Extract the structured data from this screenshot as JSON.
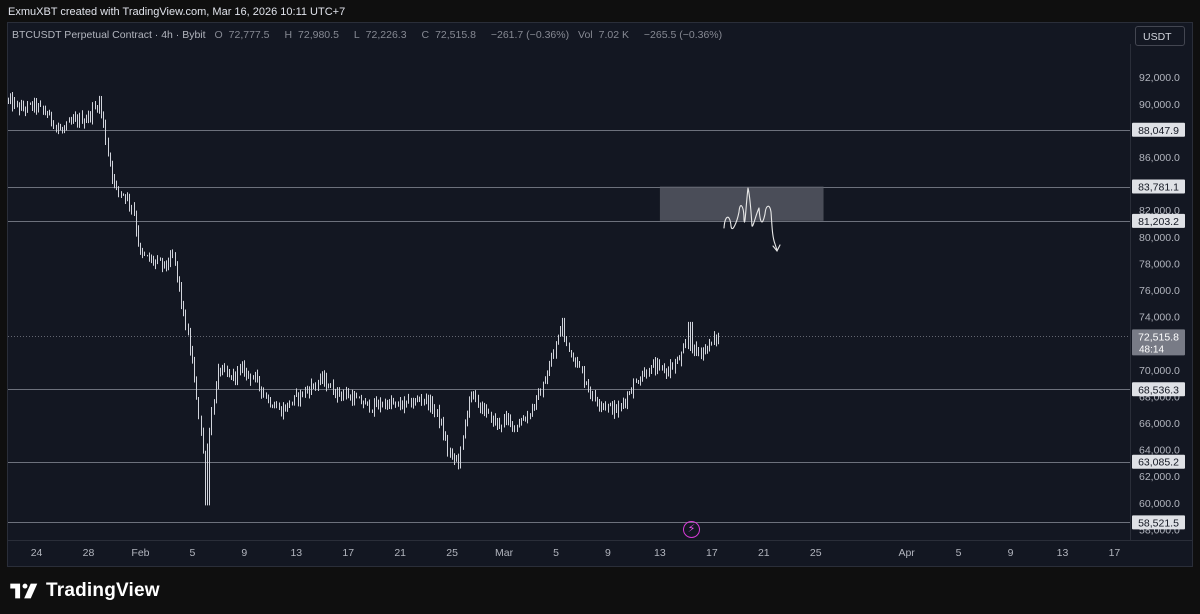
{
  "header": {
    "credit": "ExmuXBT created with TradingView.com, Mar 16, 2026 10:11 UTC+7"
  },
  "legend": {
    "symbol": "BTCUSDT Perpetual Contract · 4h · Bybit",
    "o_label": "O",
    "o_value": "72,777.5",
    "h_label": "H",
    "h_value": "72,980.5",
    "l_label": "L",
    "l_value": "72,226.3",
    "c_label": "C",
    "c_value": "72,515.8",
    "change": "−261.7 (−0.36%)",
    "vol_label": "Vol",
    "vol_value": "7.02 K",
    "vol_change": "−265.5 (−0.36%)"
  },
  "currency_button": "USDT",
  "brand": {
    "name": "TradingView"
  },
  "colors": {
    "background": "#131722",
    "candle": "#d1d4dc",
    "level_line": "#787b86",
    "zone_fill": "#5d606b",
    "price_tag": "#2a2e39",
    "current_tag": "#787b86",
    "lightning": "#e54fe5"
  },
  "icons": {
    "lightning": "lightning-icon",
    "logo": "tradingview-logo-icon"
  },
  "chart_data": {
    "type": "candlestick",
    "symbol": "BTCUSDT",
    "interval": "4h",
    "ylim": [
      57200,
      94500
    ],
    "y_ticks": [
      {
        "value": 92000,
        "label": "92,000.0"
      },
      {
        "value": 90000,
        "label": "90,000.0"
      },
      {
        "value": 86000,
        "label": "86,000.0"
      },
      {
        "value": 82000,
        "label": "82,000.0"
      },
      {
        "value": 80000,
        "label": "80,000.0"
      },
      {
        "value": 78000,
        "label": "78,000.0"
      },
      {
        "value": 76000,
        "label": "76,000.0"
      },
      {
        "value": 74000,
        "label": "74,000.0"
      },
      {
        "value": 70000,
        "label": "70,000.0"
      },
      {
        "value": 68000,
        "label": "68,000.0"
      },
      {
        "value": 66000,
        "label": "66,000.0"
      },
      {
        "value": 64000,
        "label": "64,000.0"
      },
      {
        "value": 62000,
        "label": "62,000.0"
      },
      {
        "value": 60000,
        "label": "60,000.0"
      },
      {
        "value": 58000,
        "label": "58,000.0"
      }
    ],
    "x_ticks": [
      {
        "day": 24,
        "label": "24"
      },
      {
        "day": 28,
        "label": "28"
      },
      {
        "day": 32,
        "label": "Feb"
      },
      {
        "day": 36,
        "label": "5"
      },
      {
        "day": 40,
        "label": "9"
      },
      {
        "day": 44,
        "label": "13"
      },
      {
        "day": 48,
        "label": "17"
      },
      {
        "day": 52,
        "label": "21"
      },
      {
        "day": 56,
        "label": "25"
      },
      {
        "day": 60,
        "label": "Mar"
      },
      {
        "day": 64,
        "label": "5"
      },
      {
        "day": 68,
        "label": "9"
      },
      {
        "day": 72,
        "label": "13"
      },
      {
        "day": 76,
        "label": "17"
      },
      {
        "day": 80,
        "label": "21"
      },
      {
        "day": 84,
        "label": "25"
      },
      {
        "day": 91,
        "label": "Apr"
      },
      {
        "day": 95,
        "label": "5"
      },
      {
        "day": 99,
        "label": "9"
      },
      {
        "day": 103,
        "label": "13"
      },
      {
        "day": 107,
        "label": "17"
      }
    ],
    "x_range_days": [
      21.8,
      108.2
    ],
    "levels": [
      {
        "value": 88047.9,
        "label": "88,047.9"
      },
      {
        "value": 83781.1,
        "label": "83,781.1"
      },
      {
        "value": 81203.2,
        "label": "81,203.2"
      },
      {
        "value": 68536.3,
        "label": "68,536.3"
      },
      {
        "value": 63085.2,
        "label": "63,085.2"
      },
      {
        "value": 58521.5,
        "label": "58,521.5"
      }
    ],
    "current_price": {
      "value": 72515.8,
      "label": "72,515.8",
      "countdown": "48:14"
    },
    "zone": {
      "from_day": 72.0,
      "to_day": 84.6,
      "low": 81203.2,
      "high": 83781.1
    },
    "price_anchors": [
      [
        21.8,
        90300
      ],
      [
        23,
        89600
      ],
      [
        24,
        89900
      ],
      [
        25,
        89200
      ],
      [
        26,
        87900
      ],
      [
        27,
        88700
      ],
      [
        28,
        88900
      ],
      [
        29,
        90200
      ],
      [
        29.6,
        86500
      ],
      [
        30.2,
        83600
      ],
      [
        31,
        83100
      ],
      [
        31.6,
        82000
      ],
      [
        32.1,
        78700
      ],
      [
        33,
        78200
      ],
      [
        34,
        77800
      ],
      [
        34.7,
        78500
      ],
      [
        35.4,
        74500
      ],
      [
        36,
        71400
      ],
      [
        36.6,
        67000
      ],
      [
        37.1,
        62500
      ],
      [
        37.6,
        66600
      ],
      [
        38.2,
        70100
      ],
      [
        39,
        69400
      ],
      [
        40,
        70000
      ],
      [
        41,
        69300
      ],
      [
        42,
        67700
      ],
      [
        43,
        66900
      ],
      [
        44,
        67800
      ],
      [
        45.4,
        68800
      ],
      [
        46.2,
        69300
      ],
      [
        47,
        68400
      ],
      [
        48,
        68100
      ],
      [
        49,
        67600
      ],
      [
        50,
        67200
      ],
      [
        51,
        67500
      ],
      [
        52,
        67300
      ],
      [
        53,
        67500
      ],
      [
        54,
        67900
      ],
      [
        55,
        66700
      ],
      [
        56,
        63400
      ],
      [
        56.7,
        63200
      ],
      [
        57.5,
        68200
      ],
      [
        58.6,
        66900
      ],
      [
        59.6,
        65900
      ],
      [
        60.3,
        66200
      ],
      [
        61,
        65800
      ],
      [
        62,
        66600
      ],
      [
        63,
        68400
      ],
      [
        63.8,
        70700
      ],
      [
        64.5,
        73100
      ],
      [
        65.2,
        71500
      ],
      [
        66,
        70000
      ],
      [
        67,
        67900
      ],
      [
        68,
        67300
      ],
      [
        68.9,
        66900
      ],
      [
        69.8,
        68400
      ],
      [
        70.7,
        69600
      ],
      [
        71.6,
        70200
      ],
      [
        72.6,
        69900
      ],
      [
        73.5,
        70600
      ],
      [
        74.3,
        71900
      ],
      [
        75,
        71300
      ],
      [
        75.8,
        71700
      ],
      [
        76.6,
        72500
      ]
    ]
  }
}
